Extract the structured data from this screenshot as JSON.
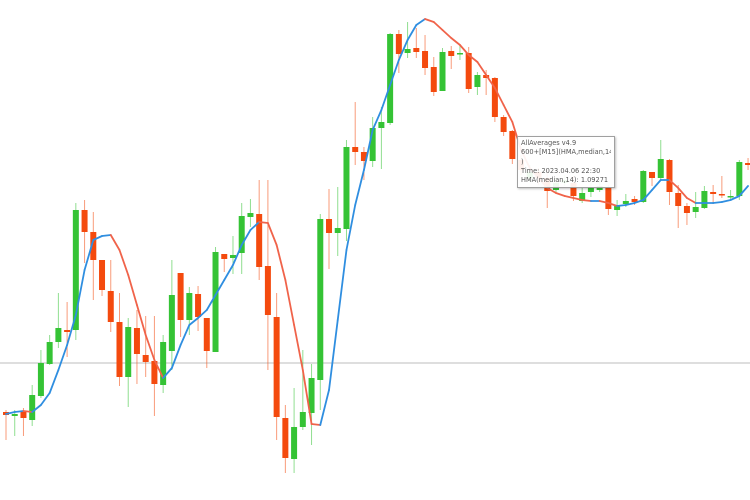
{
  "chart_data": {
    "type": "candlestick",
    "title": "",
    "ylim": [
      1.086,
      1.096
    ],
    "grid": false,
    "colors": {
      "bull": "#35c335",
      "bear": "#f44a0e",
      "hma_up": "#2f8ee0",
      "hma_down": "#f0634a",
      "level_line": "#bdbdbd"
    },
    "level_line": 1.08874,
    "candles_ohlc": [
      [
        1.08776,
        1.0878,
        1.0872,
        1.0877
      ],
      [
        1.08768,
        1.0878,
        1.08728,
        1.08772
      ],
      [
        1.08776,
        1.08784,
        1.08728,
        1.08764
      ],
      [
        1.0876,
        1.0883,
        1.08748,
        1.0881
      ],
      [
        1.08808,
        1.089,
        1.08804,
        1.08874
      ],
      [
        1.08872,
        1.0893,
        1.0887,
        1.08916
      ],
      [
        1.08916,
        1.09014,
        1.08904,
        1.08944
      ],
      [
        1.0894,
        1.08996,
        1.08886,
        1.08936
      ],
      [
        1.0894,
        1.09194,
        1.0892,
        1.0918
      ],
      [
        1.0918,
        1.092,
        1.09074,
        1.09136
      ],
      [
        1.09136,
        1.09176,
        1.09,
        1.0908
      ],
      [
        1.0908,
        1.0908,
        1.09008,
        1.0902
      ],
      [
        1.09018,
        1.0908,
        1.08936,
        1.08956
      ],
      [
        1.08956,
        1.09014,
        1.08828,
        1.08846
      ],
      [
        1.08846,
        1.08964,
        1.08786,
        1.08946
      ],
      [
        1.08944,
        1.0898,
        1.08832,
        1.08892
      ],
      [
        1.0889,
        1.08968,
        1.08846,
        1.08876
      ],
      [
        1.08878,
        1.08968,
        1.08768,
        1.08832
      ],
      [
        1.0883,
        1.0893,
        1.08814,
        1.08916
      ],
      [
        1.08898,
        1.0908,
        1.0886,
        1.0901
      ],
      [
        1.09054,
        1.09054,
        1.08926,
        1.0896
      ],
      [
        1.0896,
        1.09026,
        1.0893,
        1.09014
      ],
      [
        1.09012,
        1.09028,
        1.08938,
        1.08966
      ],
      [
        1.08964,
        1.08964,
        1.08864,
        1.08898
      ],
      [
        1.08896,
        1.09106,
        1.08896,
        1.09096
      ],
      [
        1.09092,
        1.09092,
        1.09056,
        1.09082
      ],
      [
        1.09084,
        1.09128,
        1.09052,
        1.0909
      ],
      [
        1.09094,
        1.09194,
        1.09052,
        1.09168
      ],
      [
        1.09166,
        1.09202,
        1.09146,
        1.09174
      ],
      [
        1.09172,
        1.0924,
        1.0904,
        1.09066
      ],
      [
        1.09068,
        1.0924,
        1.0886,
        1.0897
      ],
      [
        1.08966,
        1.09014,
        1.0872,
        1.08766
      ],
      [
        1.08764,
        1.0879,
        1.08654,
        1.08684
      ],
      [
        1.08682,
        1.08824,
        1.08654,
        1.08746
      ],
      [
        1.08746,
        1.089,
        1.0874,
        1.08776
      ],
      [
        1.08774,
        1.08872,
        1.0871,
        1.08844
      ],
      [
        1.0884,
        1.09172,
        1.0878,
        1.09162
      ],
      [
        1.09162,
        1.09222,
        1.09062,
        1.09134
      ],
      [
        1.09134,
        1.09226,
        1.09088,
        1.09144
      ],
      [
        1.09142,
        1.0932,
        1.09118,
        1.09306
      ],
      [
        1.09306,
        1.09396,
        1.0927,
        1.09296
      ],
      [
        1.09296,
        1.09306,
        1.0924,
        1.09278
      ],
      [
        1.09278,
        1.09366,
        1.09266,
        1.09344
      ],
      [
        1.09344,
        1.09386,
        1.09262,
        1.09356
      ],
      [
        1.09354,
        1.09534,
        1.0935,
        1.09532
      ],
      [
        1.09532,
        1.0954,
        1.09454,
        1.09492
      ],
      [
        1.09494,
        1.09556,
        1.09484,
        1.09502
      ],
      [
        1.09504,
        1.09544,
        1.09484,
        1.09496
      ],
      [
        1.09498,
        1.0953,
        1.0945,
        1.09464
      ],
      [
        1.09466,
        1.09486,
        1.09408,
        1.09416
      ],
      [
        1.09418,
        1.09504,
        1.09418,
        1.09496
      ],
      [
        1.09498,
        1.09508,
        1.09462,
        1.09488
      ],
      [
        1.09492,
        1.0951,
        1.0948,
        1.09494
      ],
      [
        1.09494,
        1.09506,
        1.09414,
        1.09422
      ],
      [
        1.09426,
        1.09456,
        1.0941,
        1.0945
      ],
      [
        1.0945,
        1.0946,
        1.0941,
        1.09444
      ],
      [
        1.09444,
        1.09446,
        1.09356,
        1.09366
      ],
      [
        1.09366,
        1.0937,
        1.09328,
        1.09336
      ],
      [
        1.09338,
        1.0934,
        1.09272,
        1.09282
      ],
      [
        1.0928,
        1.0929,
        1.0925,
        1.0926
      ],
      [
        1.09244,
        1.0927,
        1.09236,
        1.09256
      ],
      [
        1.09256,
        1.09264,
        1.0923,
        1.09244
      ],
      [
        1.09244,
        1.0926,
        1.09184,
        1.09218
      ],
      [
        1.0922,
        1.09244,
        1.09216,
        1.09234
      ],
      [
        1.09234,
        1.0925,
        1.09228,
        1.0924
      ],
      [
        1.09234,
        1.09248,
        1.09198,
        1.09208
      ],
      [
        1.09198,
        1.09224,
        1.09194,
        1.09214
      ],
      [
        1.09216,
        1.09234,
        1.09206,
        1.09224
      ],
      [
        1.0922,
        1.0924,
        1.09216,
        1.09228
      ],
      [
        1.09226,
        1.0923,
        1.0917,
        1.09182
      ],
      [
        1.0918,
        1.092,
        1.09168,
        1.09188
      ],
      [
        1.09192,
        1.09212,
        1.09186,
        1.09198
      ],
      [
        1.09202,
        1.09208,
        1.0919,
        1.09196
      ],
      [
        1.09196,
        1.0926,
        1.09194,
        1.09258
      ],
      [
        1.09256,
        1.09256,
        1.09228,
        1.09244
      ],
      [
        1.09244,
        1.0932,
        1.0924,
        1.09282
      ],
      [
        1.0928,
        1.09282,
        1.0919,
        1.09216
      ],
      [
        1.09214,
        1.0923,
        1.09144,
        1.09188
      ],
      [
        1.09188,
        1.09194,
        1.0915,
        1.09174
      ],
      [
        1.09176,
        1.09216,
        1.09164,
        1.09186
      ],
      [
        1.09184,
        1.09228,
        1.09182,
        1.09218
      ],
      [
        1.09216,
        1.0923,
        1.09192,
        1.09212
      ],
      [
        1.09212,
        1.09248,
        1.09204,
        1.0921
      ],
      [
        1.09208,
        1.0922,
        1.092,
        1.09208
      ],
      [
        1.09208,
        1.0928,
        1.092,
        1.09276
      ],
      [
        1.09274,
        1.09284,
        1.0926,
        1.0927
      ]
    ],
    "hma_values": [
      1.08772,
      1.08776,
      1.08778,
      1.08776,
      1.0879,
      1.08814,
      1.0886,
      1.0891,
      1.0897,
      1.0906,
      1.0912,
      1.09128,
      1.0913,
      1.091,
      1.0905,
      1.0899,
      1.0893,
      1.0888,
      1.08844,
      1.08864,
      1.0891,
      1.0895,
      1.08964,
      1.0898,
      1.0901,
      1.0904,
      1.0907,
      1.0911,
      1.0914,
      1.09156,
      1.09154,
      1.0911,
      1.0904,
      1.0895,
      1.0886,
      1.08752,
      1.0875,
      1.0882,
      1.0896,
      1.091,
      1.0919,
      1.0926,
      1.0934,
      1.0938,
      1.0943,
      1.0948,
      1.0952,
      1.0955,
      1.09562,
      1.09556,
      1.0954,
      1.09524,
      1.0951,
      1.0949,
      1.09476,
      1.0945,
      1.09424,
      1.0939,
      1.09356,
      1.093,
      1.09264,
      1.09244,
      1.09224,
      1.09214,
      1.09208,
      1.09204,
      1.092,
      1.09198,
      1.09198,
      1.09194,
      1.09188,
      1.0919,
      1.09194,
      1.092,
      1.0922,
      1.0924,
      1.0924,
      1.09224,
      1.09204,
      1.09194,
      1.09194,
      1.09194,
      1.09196,
      1.092,
      1.09208,
      1.09228
    ],
    "tooltip": {
      "line1": "AllAverages v4.9",
      "line2": "600+[M15](HMA,median,14",
      "line3": ")",
      "line4": "Time: 2023.04.06 22:30",
      "line5": "HMA(median,14): 1.09271"
    }
  }
}
